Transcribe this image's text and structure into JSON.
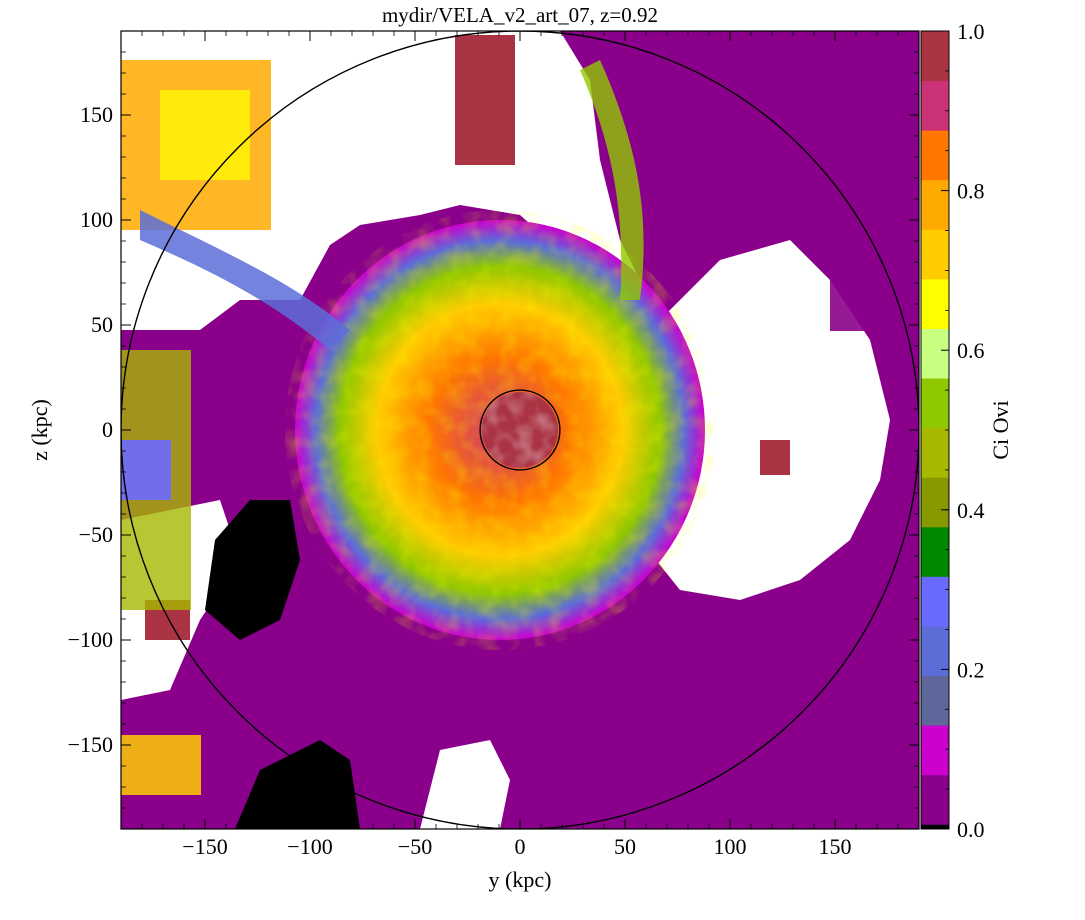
{
  "chart_data": {
    "type": "heatmap",
    "title": "mydir/VELA_v2_art_07, z=0.92",
    "xlabel": "y  (kpc)",
    "ylabel": "z  (kpc)",
    "xlim": [
      -190,
      190
    ],
    "ylim": [
      -190,
      190
    ],
    "x_ticks": [
      -150,
      -100,
      -50,
      0,
      50,
      100,
      150
    ],
    "y_ticks": [
      -150,
      -100,
      -50,
      0,
      50,
      100,
      150
    ],
    "x_tick_labels": [
      "−150",
      "−100",
      "−50",
      "0",
      "50",
      "100",
      "150"
    ],
    "y_tick_labels": [
      "−150",
      "−100",
      "−50",
      "0",
      "50",
      "100",
      "150"
    ],
    "colorbar": {
      "label": "Ci Ovi",
      "range": [
        0.0,
        1.0
      ],
      "ticks": [
        0.0,
        0.2,
        0.4,
        0.6,
        0.8,
        1.0
      ],
      "tick_labels": [
        "0.0",
        "0.2",
        "0.4",
        "0.6",
        "0.8",
        "1.0"
      ],
      "colors": [
        "#000000",
        "#8b008b",
        "#cc00cc",
        "#5f6699",
        "#5c6dd8",
        "#6a6aff",
        "#008800",
        "#889900",
        "#a8b800",
        "#90c800",
        "#c8ff80",
        "#ffff00",
        "#ffcc00",
        "#ffaa00",
        "#ff7700",
        "#cc3377",
        "#aa3344"
      ]
    },
    "circles": [
      {
        "center": [
          0,
          0
        ],
        "radius": 190
      },
      {
        "center": [
          0,
          0
        ],
        "radius": 19
      }
    ],
    "grid": false
  }
}
